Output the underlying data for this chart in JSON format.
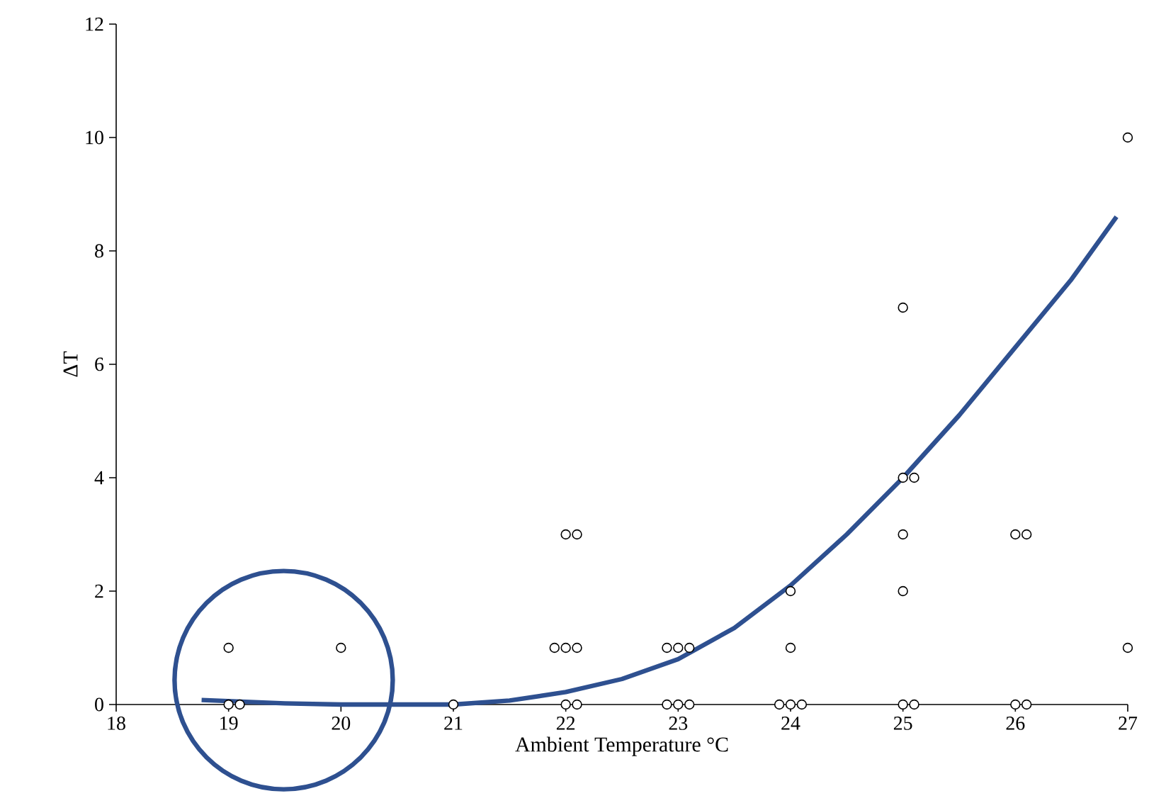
{
  "chart_data": {
    "type": "scatter",
    "xlabel": "Ambient Temperature °C",
    "ylabel": "ΔT",
    "xlim": [
      18,
      27
    ],
    "ylim": [
      0,
      12
    ],
    "xticks": [
      18,
      19,
      20,
      21,
      22,
      23,
      24,
      25,
      26,
      27
    ],
    "yticks": [
      0,
      2,
      4,
      6,
      8,
      10,
      12
    ],
    "series": [
      {
        "color": "#000000",
        "marker": "circle",
        "x": [
          19.0,
          19.0,
          19.1,
          20.0,
          21.0,
          21.9,
          22.0,
          22.1,
          22.0,
          22.1,
          22.0,
          22.1,
          22.9,
          23.0,
          23.1,
          22.9,
          23.0,
          23.1,
          24.0,
          24.0,
          23.9,
          24.0,
          24.1,
          25.0,
          25.0,
          25.1,
          25.0,
          25.0,
          25.0,
          25.1,
          26.0,
          26.1,
          26.0,
          26.1,
          27.0,
          27.0
        ],
        "values": [
          1,
          0,
          0,
          1,
          0,
          1,
          1,
          1,
          3,
          3,
          0,
          0,
          1,
          1,
          1,
          0,
          0,
          0,
          2,
          1,
          0,
          0,
          0,
          7,
          4,
          4,
          3,
          2,
          0,
          0,
          3,
          3,
          0,
          0,
          10,
          1
        ]
      },
      {
        "type": "line",
        "color": "#2e5090",
        "marker": "none",
        "line_style": "solid",
        "x": [
          18.76,
          19.5,
          20.0,
          20.5,
          21.0,
          21.5,
          22.0,
          22.5,
          23.0,
          23.5,
          24.0,
          24.5,
          25.0,
          25.5,
          26.0,
          26.5,
          26.9
        ],
        "values": [
          0.08,
          0.02,
          0,
          0,
          0,
          0.07,
          0.22,
          0.45,
          0.8,
          1.35,
          2.1,
          3.0,
          4.0,
          5.1,
          6.3,
          7.5,
          8.6
        ]
      }
    ]
  }
}
